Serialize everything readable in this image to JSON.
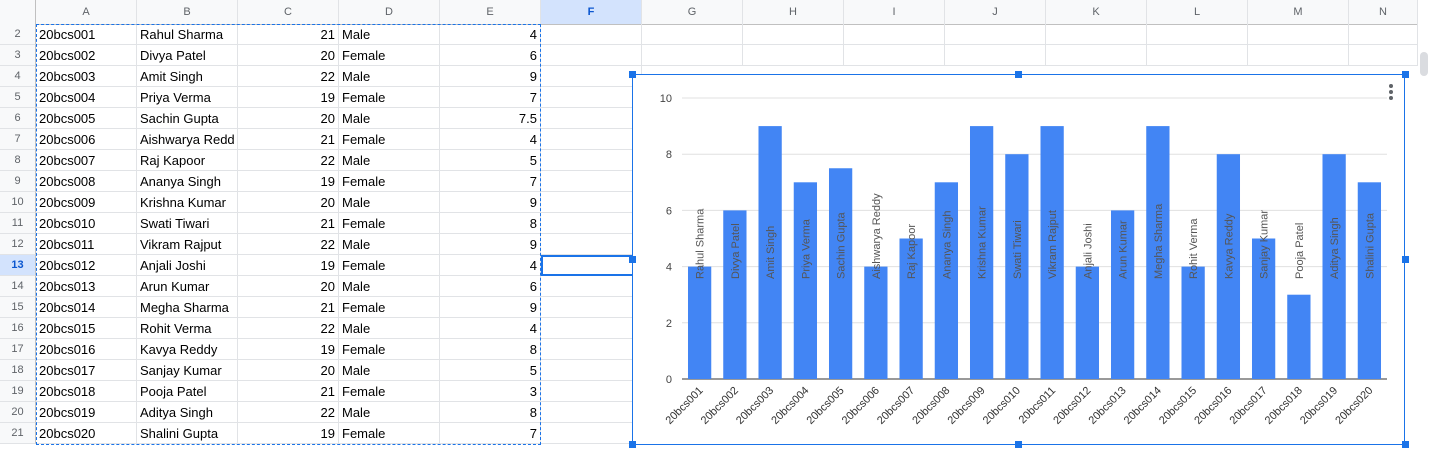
{
  "columns": [
    "A",
    "B",
    "C",
    "D",
    "E",
    "F",
    "G",
    "H",
    "I",
    "J",
    "K",
    "L",
    "M",
    "N"
  ],
  "selected_column": "F",
  "selected_row": "13",
  "rows": [
    {
      "row": "2",
      "id": "20bcs001",
      "name": "Rahul Sharma",
      "age": "21",
      "gender": "Male",
      "score": "4"
    },
    {
      "row": "3",
      "id": "20bcs002",
      "name": "Divya Patel",
      "age": "20",
      "gender": "Female",
      "score": "6"
    },
    {
      "row": "4",
      "id": "20bcs003",
      "name": "Amit Singh",
      "age": "22",
      "gender": "Male",
      "score": "9"
    },
    {
      "row": "5",
      "id": "20bcs004",
      "name": "Priya Verma",
      "age": "19",
      "gender": "Female",
      "score": "7"
    },
    {
      "row": "6",
      "id": "20bcs005",
      "name": "Sachin Gupta",
      "age": "20",
      "gender": "Male",
      "score": "7.5"
    },
    {
      "row": "7",
      "id": "20bcs006",
      "name": "Aishwarya Redd",
      "age": "21",
      "gender": "Female",
      "score": "4"
    },
    {
      "row": "8",
      "id": "20bcs007",
      "name": "Raj Kapoor",
      "age": "22",
      "gender": "Male",
      "score": "5"
    },
    {
      "row": "9",
      "id": "20bcs008",
      "name": "Ananya Singh",
      "age": "19",
      "gender": "Female",
      "score": "7"
    },
    {
      "row": "10",
      "id": "20bcs009",
      "name": "Krishna Kumar",
      "age": "20",
      "gender": "Male",
      "score": "9"
    },
    {
      "row": "11",
      "id": "20bcs010",
      "name": "Swati Tiwari",
      "age": "21",
      "gender": "Female",
      "score": "8"
    },
    {
      "row": "12",
      "id": "20bcs011",
      "name": "Vikram Rajput",
      "age": "22",
      "gender": "Male",
      "score": "9"
    },
    {
      "row": "13",
      "id": "20bcs012",
      "name": "Anjali Joshi",
      "age": "19",
      "gender": "Female",
      "score": "4"
    },
    {
      "row": "14",
      "id": "20bcs013",
      "name": "Arun Kumar",
      "age": "20",
      "gender": "Male",
      "score": "6"
    },
    {
      "row": "15",
      "id": "20bcs014",
      "name": "Megha Sharma",
      "age": "21",
      "gender": "Female",
      "score": "9"
    },
    {
      "row": "16",
      "id": "20bcs015",
      "name": "Rohit Verma",
      "age": "22",
      "gender": "Male",
      "score": "4"
    },
    {
      "row": "17",
      "id": "20bcs016",
      "name": "Kavya Reddy",
      "age": "19",
      "gender": "Female",
      "score": "8"
    },
    {
      "row": "18",
      "id": "20bcs017",
      "name": "Sanjay Kumar",
      "age": "20",
      "gender": "Male",
      "score": "5"
    },
    {
      "row": "19",
      "id": "20bcs018",
      "name": "Pooja Patel",
      "age": "21",
      "gender": "Female",
      "score": "3"
    },
    {
      "row": "20",
      "id": "20bcs019",
      "name": "Aditya Singh",
      "age": "22",
      "gender": "Male",
      "score": "8"
    },
    {
      "row": "21",
      "id": "20bcs020",
      "name": "Shalini Gupta",
      "age": "19",
      "gender": "Female",
      "score": "7"
    }
  ],
  "chart_data": {
    "type": "bar",
    "categories": [
      "20bcs001",
      "20bcs002",
      "20bcs003",
      "20bcs004",
      "20bcs005",
      "20bcs006",
      "20bcs007",
      "20bcs008",
      "20bcs009",
      "20bcs010",
      "20bcs011",
      "20bcs012",
      "20bcs013",
      "20bcs014",
      "20bcs015",
      "20bcs016",
      "20bcs017",
      "20bcs018",
      "20bcs019",
      "20bcs020"
    ],
    "values": [
      4,
      6,
      9,
      7,
      7.5,
      4,
      5,
      7,
      9,
      8,
      9,
      4,
      6,
      9,
      4,
      8,
      5,
      3,
      8,
      7
    ],
    "data_labels": [
      "Rahul Sharma",
      "Divya Patel",
      "Amit Singh",
      "Priya Verma",
      "Sachin Gupta",
      "Aishwarya Reddy",
      "Raj Kapoor",
      "Ananya Singh",
      "Krishna Kumar",
      "Swati Tiwari",
      "Vikram Rajput",
      "Anjali Joshi",
      "Arun Kumar",
      "Megha Sharma",
      "Rohit Verma",
      "Kavya Reddy",
      "Sanjay Kumar",
      "Pooja Patel",
      "Aditya Singh",
      "Shalini Gupta"
    ],
    "ylim": [
      0,
      10
    ],
    "yticks": [
      0,
      2,
      4,
      6,
      8,
      10
    ],
    "grid": true,
    "bar_color": "#4285f4"
  },
  "colors": {
    "selection": "#1a73e8",
    "header_bg": "#f8f9fa",
    "selected_header_bg": "#d3e3fd"
  },
  "icons": {
    "chart_menu": "more-vertical-icon"
  }
}
